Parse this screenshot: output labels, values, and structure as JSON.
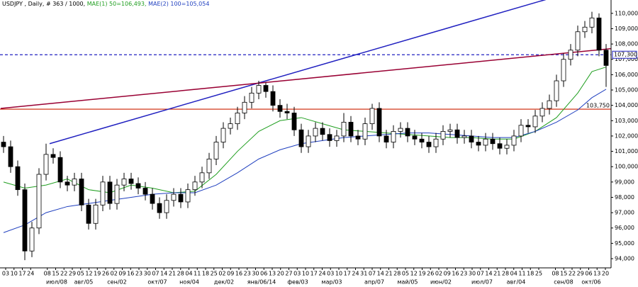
{
  "chart_data": {
    "type": "candlestick",
    "title": "USDJPY , Daily, # 363 / 1000,",
    "ma1_label": "MAE(1) 50=106,493,",
    "ma2_label": "MAE(2) 100=105,054",
    "ylim": [
      93.4,
      110.87
    ],
    "yticks": [
      {
        "value": 94,
        "label": "94,000"
      },
      {
        "value": 95,
        "label": "95,000"
      },
      {
        "value": 96,
        "label": "96,000"
      },
      {
        "value": 97,
        "label": "97,000"
      },
      {
        "value": 98,
        "label": "98,000"
      },
      {
        "value": 99,
        "label": "99,000"
      },
      {
        "value": 100,
        "label": "100,000"
      },
      {
        "value": 101,
        "label": "101,000"
      },
      {
        "value": 102,
        "label": "102,000"
      },
      {
        "value": 103,
        "label": "103,000"
      },
      {
        "value": 104,
        "label": "104,000"
      },
      {
        "value": 105,
        "label": "105,000"
      },
      {
        "value": 106,
        "label": "106,000"
      },
      {
        "value": 107,
        "label": "107,000"
      },
      {
        "value": 108,
        "label": "108,000"
      },
      {
        "value": 109,
        "label": "109,000"
      },
      {
        "value": 110,
        "label": "110,000"
      }
    ],
    "up_color": "#ffffff",
    "down_color": "#000000",
    "open": [
      101.6,
      101.3,
      100.0,
      98.5,
      94.5,
      96.0,
      99.5,
      100.8,
      100.6,
      99.0,
      98.8,
      99.2,
      97.5,
      96.3,
      97.5,
      99.0,
      97.6,
      98.8,
      99.2,
      98.9,
      98.6,
      98.2,
      97.6,
      97.0,
      97.8,
      98.2,
      97.7,
      98.5,
      99.0,
      99.6,
      100.5,
      101.6,
      102.5,
      102.8,
      103.5,
      104.2,
      104.8,
      105.3,
      104.9,
      104.0,
      103.6,
      103.5,
      102.4,
      101.3,
      102.0,
      102.5,
      102.1,
      101.7,
      102.0,
      102.9,
      102.0,
      101.8,
      102.8,
      103.8,
      102.0,
      101.6,
      102.3,
      102.5,
      102.0,
      101.8,
      101.6,
      101.3,
      101.8,
      102.3,
      102.4,
      101.9,
      102.0,
      101.6,
      101.4,
      101.8,
      101.5,
      101.2,
      101.4,
      102.0,
      102.7,
      102.6,
      103.3,
      103.8,
      104.3,
      105.6,
      107.0,
      107.6,
      108.8,
      109.1,
      109.7,
      107.6
    ],
    "close": [
      101.3,
      100.0,
      98.5,
      94.5,
      96.0,
      99.5,
      100.8,
      100.6,
      99.0,
      98.8,
      99.2,
      97.5,
      96.3,
      97.5,
      99.0,
      97.6,
      98.8,
      99.2,
      98.9,
      98.6,
      98.2,
      97.6,
      97.0,
      97.8,
      98.2,
      97.7,
      98.5,
      99.0,
      99.6,
      100.5,
      101.6,
      102.5,
      102.8,
      103.5,
      104.2,
      104.8,
      105.3,
      104.9,
      104.0,
      103.6,
      103.5,
      102.4,
      101.3,
      102.0,
      102.5,
      102.1,
      101.7,
      102.0,
      102.9,
      102.0,
      101.8,
      102.8,
      103.8,
      102.0,
      101.6,
      102.3,
      102.5,
      102.0,
      101.8,
      101.6,
      101.3,
      101.8,
      102.3,
      102.4,
      101.9,
      102.0,
      101.6,
      101.4,
      101.8,
      101.5,
      101.2,
      101.4,
      102.0,
      102.7,
      102.6,
      103.3,
      103.8,
      104.3,
      105.6,
      107.0,
      107.6,
      108.8,
      109.1,
      109.7,
      107.6,
      106.6
    ],
    "high": [
      102.0,
      101.7,
      100.4,
      98.9,
      96.4,
      99.9,
      101.5,
      101.2,
      101.0,
      99.4,
      99.6,
      99.6,
      97.9,
      97.9,
      99.4,
      99.4,
      99.2,
      99.6,
      99.6,
      99.3,
      99.0,
      98.6,
      98.0,
      98.2,
      98.6,
      98.6,
      98.9,
      99.4,
      100.0,
      100.9,
      102.0,
      102.9,
      103.2,
      103.9,
      104.6,
      105.2,
      105.6,
      105.5,
      105.3,
      104.4,
      104.1,
      103.9,
      102.8,
      102.4,
      102.9,
      102.9,
      102.5,
      102.4,
      103.5,
      103.3,
      102.4,
      103.2,
      104.1,
      104.2,
      102.4,
      102.7,
      102.9,
      102.9,
      102.4,
      102.2,
      102.0,
      102.2,
      102.7,
      102.8,
      102.8,
      102.4,
      102.4,
      102.0,
      102.2,
      102.2,
      101.9,
      101.8,
      102.4,
      103.1,
      103.1,
      103.7,
      104.2,
      104.7,
      106.0,
      107.4,
      108.0,
      109.2,
      109.5,
      110.1,
      110.0,
      108.0
    ],
    "low": [
      100.9,
      99.6,
      98.1,
      93.9,
      94.1,
      95.6,
      99.1,
      100.2,
      98.6,
      98.4,
      98.4,
      97.1,
      95.9,
      95.9,
      97.1,
      97.2,
      97.2,
      98.4,
      98.5,
      98.2,
      97.8,
      97.2,
      96.6,
      96.6,
      97.4,
      97.3,
      97.3,
      98.1,
      98.6,
      99.2,
      100.1,
      101.2,
      102.1,
      102.4,
      103.1,
      103.8,
      104.4,
      104.5,
      103.6,
      103.2,
      103.1,
      102.0,
      100.9,
      100.9,
      101.6,
      101.7,
      101.3,
      101.3,
      101.6,
      101.6,
      101.4,
      101.4,
      102.4,
      101.6,
      101.2,
      101.2,
      101.9,
      101.6,
      101.4,
      101.2,
      100.9,
      100.9,
      101.4,
      101.9,
      101.5,
      101.5,
      101.2,
      101.0,
      101.0,
      101.1,
      100.8,
      100.8,
      101.0,
      101.6,
      102.2,
      102.2,
      102.9,
      103.4,
      103.9,
      105.2,
      106.6,
      107.2,
      108.4,
      108.7,
      107.2,
      105.2
    ],
    "series": [
      {
        "name": "MAE(1) 50",
        "color": "#1f9e1f",
        "x": [
          0,
          3,
          6,
          9,
          12,
          15,
          18,
          21,
          24,
          27,
          30,
          33,
          36,
          39,
          42,
          45,
          48,
          51,
          54,
          57,
          60,
          63,
          66,
          69,
          72,
          75,
          78,
          81,
          83,
          85
        ],
        "values": [
          99.0,
          98.6,
          98.8,
          99.2,
          98.5,
          98.3,
          98.8,
          98.6,
          98.3,
          98.4,
          99.5,
          101.0,
          102.3,
          103.0,
          103.2,
          102.8,
          102.4,
          102.3,
          102.2,
          102.1,
          102.0,
          101.9,
          101.9,
          101.8,
          101.8,
          102.3,
          103.2,
          104.8,
          106.2,
          106.5
        ]
      },
      {
        "name": "MAE(2) 100",
        "color": "#1f3fbf",
        "x": [
          0,
          3,
          6,
          9,
          12,
          15,
          18,
          21,
          24,
          27,
          30,
          33,
          36,
          39,
          42,
          45,
          48,
          51,
          54,
          57,
          60,
          63,
          66,
          69,
          72,
          75,
          78,
          81,
          83,
          85
        ],
        "values": [
          95.7,
          96.2,
          97.0,
          97.4,
          97.6,
          97.8,
          98.0,
          98.2,
          98.3,
          98.3,
          98.8,
          99.6,
          100.5,
          101.1,
          101.5,
          101.7,
          101.9,
          102.0,
          102.1,
          102.2,
          102.2,
          102.1,
          102.0,
          101.9,
          101.9,
          102.3,
          102.9,
          103.7,
          104.5,
          105.05
        ]
      }
    ],
    "trendlines": [
      {
        "color": "#2020c0",
        "x": [
          6.5,
          76.5
        ],
        "values": [
          101.5,
          110.9
        ]
      },
      {
        "color": "#990033",
        "x": [
          -0.4,
          85.7
        ],
        "values": [
          103.8,
          107.7
        ]
      }
    ],
    "hlines": [
      {
        "value": 103.75,
        "label": "103,750",
        "color": "#cc2200",
        "dashed": false
      },
      {
        "value": 107.3,
        "label": "107,300",
        "color": "#2020c0",
        "dashed": true
      }
    ],
    "day_labels": [
      "03",
      "10",
      "17",
      "24",
      "08",
      "15",
      "22",
      "29",
      "05",
      "12",
      "19",
      "26",
      "02",
      "09",
      "16",
      "23",
      "30",
      "07",
      "14",
      "21",
      "28",
      "04",
      "11",
      "18",
      "25",
      "02",
      "09",
      "16",
      "23",
      "30",
      "06",
      "13",
      "20",
      "27",
      "03",
      "10",
      "17",
      "24",
      "03",
      "10",
      "17",
      "24",
      "31",
      "07",
      "14",
      "21",
      "28",
      "05",
      "12",
      "19",
      "26",
      "02",
      "09",
      "16",
      "23",
      "30",
      "07",
      "14",
      "21",
      "28",
      "04",
      "11",
      "18",
      "25",
      "08",
      "15",
      "22",
      "29",
      "06",
      "13",
      "20"
    ],
    "month_labels": [
      "июл/08",
      "авг/05",
      "сен/02",
      "окт/07",
      "ноя/04",
      "дек/02",
      "янв/06/14",
      "фев/03",
      "мар/03",
      "апр/07",
      "май/05",
      "июн/02",
      "июл/07",
      "авг/04",
      "сен/08",
      "окт/06"
    ]
  }
}
